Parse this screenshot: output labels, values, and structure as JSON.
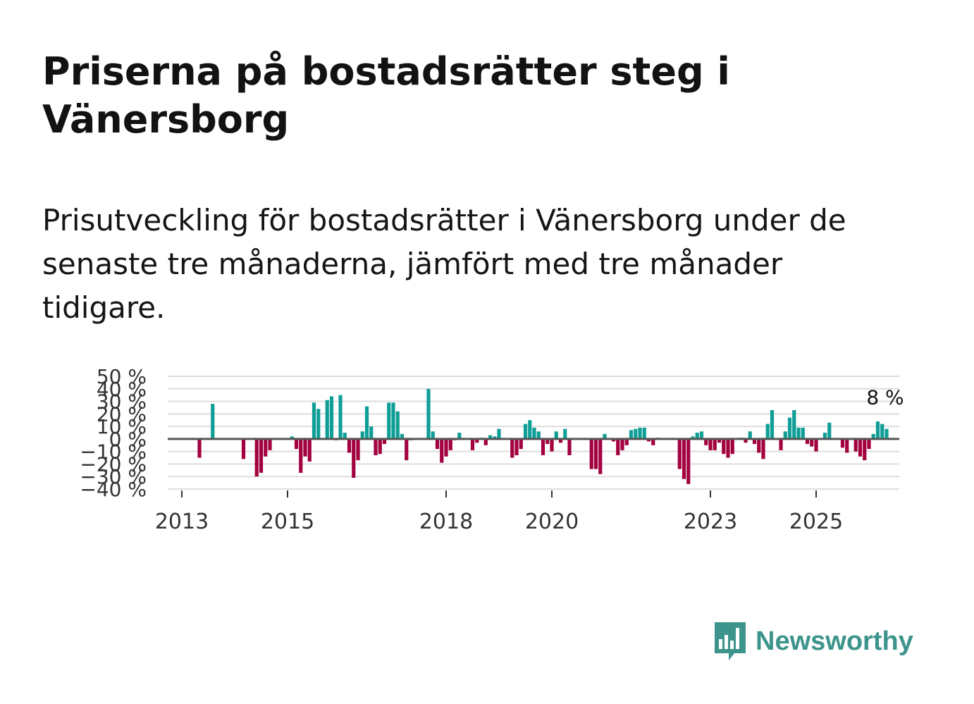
{
  "header": {
    "title": "Priserna på bostadsrätter steg i Vänersborg",
    "subtitle": "Prisutveckling för bostadsrätter i Vänersborg under de senaste tre månaderna, jämfört med tre månader tidigare."
  },
  "brand": {
    "name": "Newsworthy",
    "logo_icon": "newsworthy-logo-icon",
    "color": "#3d948c"
  },
  "colors": {
    "positive": "#0f9e96",
    "negative": "#a3003f",
    "grid": "#dddddd",
    "zero_line": "#555555"
  },
  "chart_data": {
    "type": "bar",
    "title": "Priserna på bostadsrätter steg i Vänersborg",
    "xlabel": "",
    "ylabel": "",
    "ylim": [
      -40,
      50
    ],
    "y_ticks": [
      -40,
      -30,
      -20,
      -10,
      0,
      10,
      20,
      30,
      40,
      50
    ],
    "y_tick_labels": [
      "−40 %",
      "−30 %",
      "−20 %",
      "−10 %",
      "0 %",
      "10 %",
      "20 %",
      "30 %",
      "40 %",
      "50 %"
    ],
    "x_ticks": [
      2013,
      2015,
      2018,
      2020,
      2023,
      2025
    ],
    "x_tick_labels": [
      "2013",
      "2015",
      "2018",
      "2020",
      "2023",
      "2025"
    ],
    "grid": true,
    "start": 2013.0,
    "step": 0.0833333,
    "last_label": "8 %",
    "values": [
      0,
      0,
      0,
      0,
      -15,
      0,
      0,
      28,
      0,
      0,
      0,
      0,
      0,
      0,
      -16,
      0,
      0,
      -30,
      -27,
      -14,
      -9,
      0,
      0,
      0,
      0,
      2,
      -8,
      -27,
      -14,
      -18,
      29,
      24,
      0,
      31,
      34,
      -1,
      35,
      5,
      -11,
      -31,
      -17,
      6,
      26,
      10,
      -13,
      -12,
      -4,
      29,
      29,
      22,
      4,
      -17,
      -1,
      0,
      0,
      0,
      40,
      6,
      -8,
      -19,
      -14,
      -9,
      -1,
      5,
      0,
      0,
      -9,
      -3,
      1,
      -5,
      3,
      2,
      8,
      0,
      0,
      -15,
      -13,
      -8,
      12,
      15,
      9,
      6,
      -13,
      -4,
      -10,
      6,
      -3,
      8,
      -13,
      0,
      0,
      0,
      0,
      -24,
      -24,
      -28,
      4,
      0,
      -2,
      -13,
      -9,
      -5,
      7,
      8,
      9,
      9,
      -2,
      -5,
      1,
      0,
      0,
      0,
      0,
      -24,
      -32,
      -36,
      2,
      5,
      6,
      -5,
      -9,
      -9,
      -3,
      -12,
      -15,
      -12,
      0,
      1,
      -3,
      6,
      -4,
      -11,
      -16,
      12,
      23,
      0,
      -9,
      6,
      17,
      23,
      9,
      9,
      -4,
      -6,
      -10,
      0,
      5,
      13,
      0,
      0,
      -7,
      -11,
      0,
      -10,
      -14,
      -17,
      -8,
      4,
      14,
      12,
      8
    ]
  }
}
